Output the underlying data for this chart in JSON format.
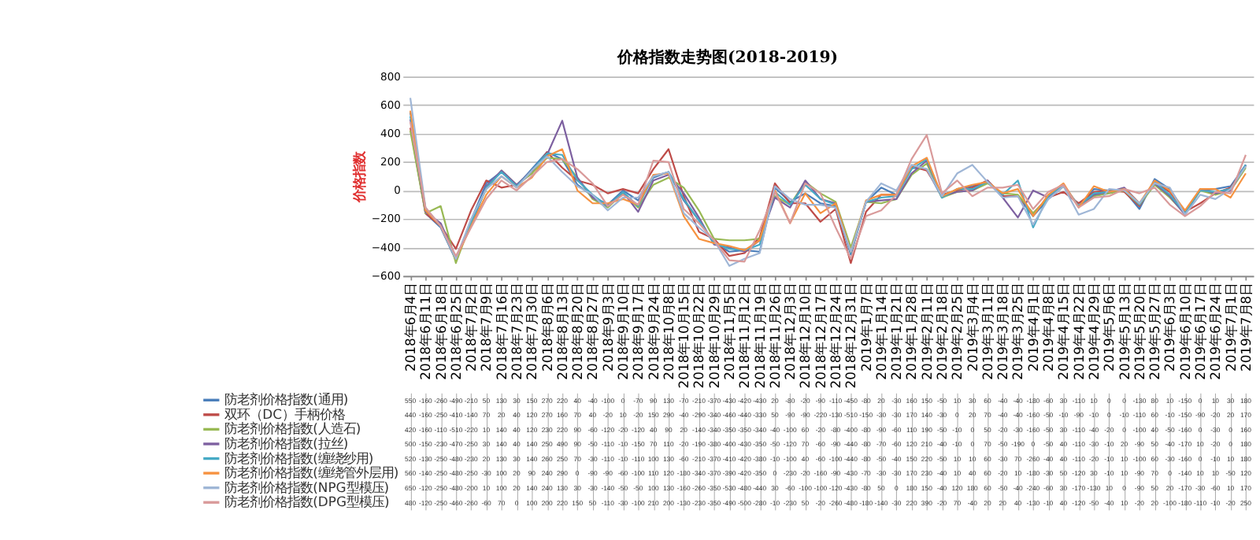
{
  "chart_data": {
    "type": "line",
    "title": "价格指数走势图(2018-2019)",
    "ylabel": "价格指数",
    "categories": [
      "2018年6月4日",
      "2018年6月11日",
      "2018年6月18日",
      "2018年6月25日",
      "2018年7月2日",
      "2018年7月9日",
      "2018年7月16日",
      "2018年7月23日",
      "2018年7月30日",
      "2018年8月6日",
      "2018年8月13日",
      "2018年8月20日",
      "2018年8月27日",
      "2018年9月3日",
      "2018年9月10日",
      "2018年9月17日",
      "2018年9月24日",
      "2018年10月8日",
      "2018年10月15日",
      "2018年10月22日",
      "2018年10月29日",
      "2018年11月5日",
      "2018年11月12日",
      "2018年11月19日",
      "2018年11月26日",
      "2018年12月3日",
      "2018年12月10日",
      "2018年12月17日",
      "2018年12月24日",
      "2018年12月31日",
      "2019年1月7日",
      "2019年1月14日",
      "2019年1月21日",
      "2019年1月28日",
      "2019年2月11日",
      "2019年2月18日",
      "2019年2月25日",
      "2019年3月4日",
      "2019年3月11日",
      "2019年3月18日",
      "2019年3月25日",
      "2019年4月1日",
      "2019年4月8日",
      "2019年4月15日",
      "2019年4月22日",
      "2019年4月29日",
      "2019年5月6日",
      "2019年5月13日",
      "2019年5月20日",
      "2019年5月27日",
      "2019年6月3日",
      "2019年6月10日",
      "2019年6月17日",
      "2019年6月24日",
      "2019年7月1日",
      "2019年7月8日"
    ],
    "series": [
      {
        "name": "防老剂价格指数(通用)",
        "color": "#4a7ebb",
        "values": [
          550,
          -160,
          -260,
          -490,
          -210,
          50,
          130,
          30,
          150,
          270,
          220,
          40,
          -40,
          -100,
          0,
          -70,
          90,
          130,
          -70,
          -210,
          -370,
          -430,
          -420,
          -430,
          20,
          -80,
          -20,
          -90,
          -110,
          -450,
          -80,
          20,
          -30,
          160,
          150,
          -50,
          10,
          30,
          60,
          -40,
          -40,
          -180,
          -60,
          30,
          -110,
          10,
          0,
          0,
          -130,
          80,
          10,
          -150,
          0,
          10,
          30,
          180
        ]
      },
      {
        "name": "双环（DC）手柄价格",
        "color": "#be4b48",
        "values": [
          440,
          -160,
          -250,
          -410,
          -140,
          70,
          20,
          40,
          120,
          270,
          160,
          70,
          40,
          -20,
          10,
          -20,
          150,
          290,
          -40,
          -290,
          -340,
          -460,
          -440,
          -330,
          50,
          -90,
          -90,
          -220,
          -130,
          -510,
          -150,
          -30,
          -30,
          170,
          140,
          -30,
          0,
          20,
          70,
          -40,
          -40,
          -160,
          -50,
          -10,
          -90,
          -10,
          0,
          -10,
          -110,
          60,
          -10,
          -150,
          -90,
          -20,
          20,
          170
        ]
      },
      {
        "name": "防老剂价格指数(人造石)",
        "color": "#98b954",
        "values": [
          420,
          -160,
          -110,
          -510,
          -220,
          10,
          140,
          40,
          120,
          230,
          220,
          90,
          -60,
          -120,
          -20,
          -120,
          40,
          90,
          20,
          -140,
          -340,
          -350,
          -350,
          -340,
          -40,
          -100,
          60,
          -20,
          -80,
          -400,
          -80,
          -90,
          -60,
          110,
          190,
          -50,
          -10,
          0,
          50,
          -20,
          -30,
          -160,
          -50,
          30,
          -110,
          -40,
          -20,
          0,
          -100,
          40,
          -50,
          -160,
          0,
          -30,
          0,
          160
        ]
      },
      {
        "name": "防老剂价格指数(拉丝)",
        "color": "#7d60a0",
        "values": [
          500,
          -150,
          -230,
          -470,
          -250,
          30,
          140,
          40,
          140,
          250,
          490,
          90,
          -50,
          -110,
          -10,
          -150,
          70,
          110,
          -20,
          -190,
          -380,
          -400,
          -430,
          -350,
          -50,
          -120,
          70,
          -60,
          -90,
          -440,
          -80,
          -70,
          -60,
          120,
          210,
          -40,
          -10,
          0,
          70,
          -50,
          -190,
          0,
          -50,
          40,
          -110,
          -30,
          -10,
          20,
          -90,
          50,
          -40,
          -170,
          10,
          -20,
          0,
          180
        ]
      },
      {
        "name": "防老剂价格指数(缠绕纱用)",
        "color": "#46aac5",
        "values": [
          520,
          -130,
          -250,
          -480,
          -230,
          20,
          130,
          30,
          140,
          260,
          250,
          70,
          -30,
          -110,
          -10,
          -110,
          100,
          130,
          -60,
          -210,
          -370,
          -410,
          -420,
          -380,
          -10,
          -100,
          40,
          -60,
          -100,
          -440,
          -80,
          -50,
          -40,
          150,
          220,
          -50,
          10,
          10,
          60,
          -30,
          70,
          -260,
          -40,
          40,
          -110,
          -20,
          -10,
          10,
          -100,
          60,
          -30,
          -160,
          0,
          -10,
          10,
          180
        ]
      },
      {
        "name": "防老剂价格指数(缠绕管外层用)",
        "color": "#f69240",
        "values": [
          560,
          -140,
          -250,
          -480,
          -250,
          -30,
          100,
          20,
          90,
          240,
          290,
          0,
          -90,
          -90,
          -60,
          -100,
          110,
          120,
          -180,
          -340,
          -370,
          -390,
          -420,
          -350,
          0,
          -230,
          -20,
          -160,
          -90,
          -430,
          -70,
          -30,
          -30,
          170,
          230,
          -40,
          10,
          40,
          60,
          -20,
          10,
          -180,
          -30,
          50,
          -120,
          30,
          -10,
          10,
          -90,
          70,
          0,
          -140,
          10,
          10,
          -50,
          120
        ]
      },
      {
        "name": "防老剂价格指数(NPG型模压)",
        "color": "#9fb6d6",
        "values": [
          650,
          -120,
          -250,
          -480,
          -200,
          10,
          100,
          20,
          140,
          240,
          130,
          30,
          -30,
          -140,
          -50,
          -50,
          100,
          130,
          -160,
          -260,
          -350,
          -530,
          -480,
          -440,
          30,
          -60,
          -100,
          -100,
          -120,
          -430,
          -80,
          50,
          0,
          180,
          150,
          -40,
          120,
          180,
          60,
          -50,
          -40,
          -240,
          -60,
          30,
          -170,
          -130,
          10,
          0,
          -90,
          50,
          20,
          -170,
          -30,
          -60,
          10,
          170
        ]
      },
      {
        "name": "防老剂价格指数(DPG型模压)",
        "color": "#d99a9a",
        "values": [
          480,
          -120,
          -250,
          -460,
          -260,
          -60,
          70,
          0,
          100,
          200,
          220,
          150,
          50,
          -110,
          -30,
          -100,
          210,
          200,
          -130,
          -230,
          -350,
          -490,
          -500,
          -280,
          -10,
          -230,
          50,
          -20,
          -260,
          -480,
          -180,
          -140,
          -30,
          220,
          390,
          -20,
          70,
          -40,
          20,
          20,
          40,
          -130,
          -10,
          40,
          -120,
          -50,
          -40,
          10,
          -20,
          20,
          -100,
          -180,
          -110,
          -10,
          -20,
          250
        ]
      }
    ],
    "ylim": [
      -600,
      800
    ],
    "yticks": [
      -600,
      -400,
      -200,
      0,
      200,
      400,
      600,
      800
    ],
    "grid": "y",
    "legend": "bottom",
    "data_labels": true,
    "marker": "none",
    "line_style": "solid"
  }
}
